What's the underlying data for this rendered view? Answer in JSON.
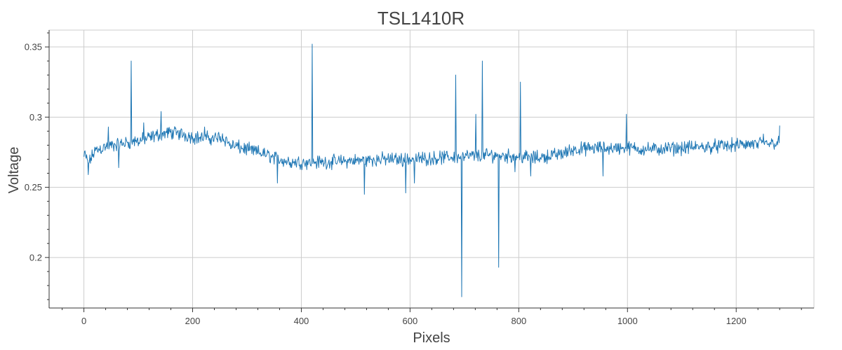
{
  "chart_data": {
    "type": "line",
    "title": "TSL1410R",
    "xlabel": "Pixels",
    "ylabel": "Voltage",
    "xlim": [
      -64,
      1343
    ],
    "ylim": [
      0.164,
      0.362
    ],
    "x_ticks": [
      0,
      200,
      400,
      600,
      800,
      1000,
      1200
    ],
    "x_tick_labels": [
      "0",
      "200",
      "400",
      "600",
      "800",
      "1000",
      "1200"
    ],
    "y_ticks": [
      0.2,
      0.25,
      0.3,
      0.35
    ],
    "y_tick_labels": [
      "0.2",
      "0.25",
      "0.3",
      "0.35"
    ],
    "grid": true,
    "legend": "none",
    "series": [
      {
        "color": "#1f77b4",
        "line_width": 1,
        "n_points": 1281,
        "profile": [
          [
            0,
            0.272
          ],
          [
            10,
            0.268
          ],
          [
            20,
            0.276
          ],
          [
            40,
            0.279
          ],
          [
            60,
            0.28
          ],
          [
            80,
            0.282
          ],
          [
            100,
            0.283
          ],
          [
            120,
            0.285
          ],
          [
            140,
            0.288
          ],
          [
            160,
            0.289
          ],
          [
            180,
            0.288
          ],
          [
            200,
            0.286
          ],
          [
            220,
            0.285
          ],
          [
            240,
            0.285
          ],
          [
            255,
            0.286
          ],
          [
            270,
            0.28
          ],
          [
            300,
            0.277
          ],
          [
            330,
            0.274
          ],
          [
            350,
            0.271
          ],
          [
            380,
            0.268
          ],
          [
            400,
            0.268
          ],
          [
            450,
            0.268
          ],
          [
            500,
            0.269
          ],
          [
            550,
            0.27
          ],
          [
            600,
            0.27
          ],
          [
            650,
            0.271
          ],
          [
            700,
            0.272
          ],
          [
            750,
            0.273
          ],
          [
            800,
            0.272
          ],
          [
            830,
            0.271
          ],
          [
            850,
            0.272
          ],
          [
            880,
            0.274
          ],
          [
            900,
            0.277
          ],
          [
            950,
            0.278
          ],
          [
            1000,
            0.278
          ],
          [
            1050,
            0.277
          ],
          [
            1100,
            0.278
          ],
          [
            1150,
            0.279
          ],
          [
            1200,
            0.28
          ],
          [
            1250,
            0.281
          ],
          [
            1280,
            0.282
          ]
        ],
        "noise_amplitude": 0.006,
        "spikes": [
          [
            2,
            0.276
          ],
          [
            8,
            0.259
          ],
          [
            45,
            0.293
          ],
          [
            64,
            0.264
          ],
          [
            87,
            0.34
          ],
          [
            110,
            0.296
          ],
          [
            142,
            0.304
          ],
          [
            222,
            0.293
          ],
          [
            356,
            0.253
          ],
          [
            420,
            0.352
          ],
          [
            516,
            0.245
          ],
          [
            592,
            0.246
          ],
          [
            608,
            0.253
          ],
          [
            684,
            0.33
          ],
          [
            695,
            0.172
          ],
          [
            721,
            0.302
          ],
          [
            733,
            0.34
          ],
          [
            763,
            0.193
          ],
          [
            793,
            0.261
          ],
          [
            803,
            0.325
          ],
          [
            822,
            0.258
          ],
          [
            955,
            0.258
          ],
          [
            998,
            0.302
          ],
          [
            1250,
            0.288
          ],
          [
            1280,
            0.294
          ]
        ]
      }
    ]
  }
}
